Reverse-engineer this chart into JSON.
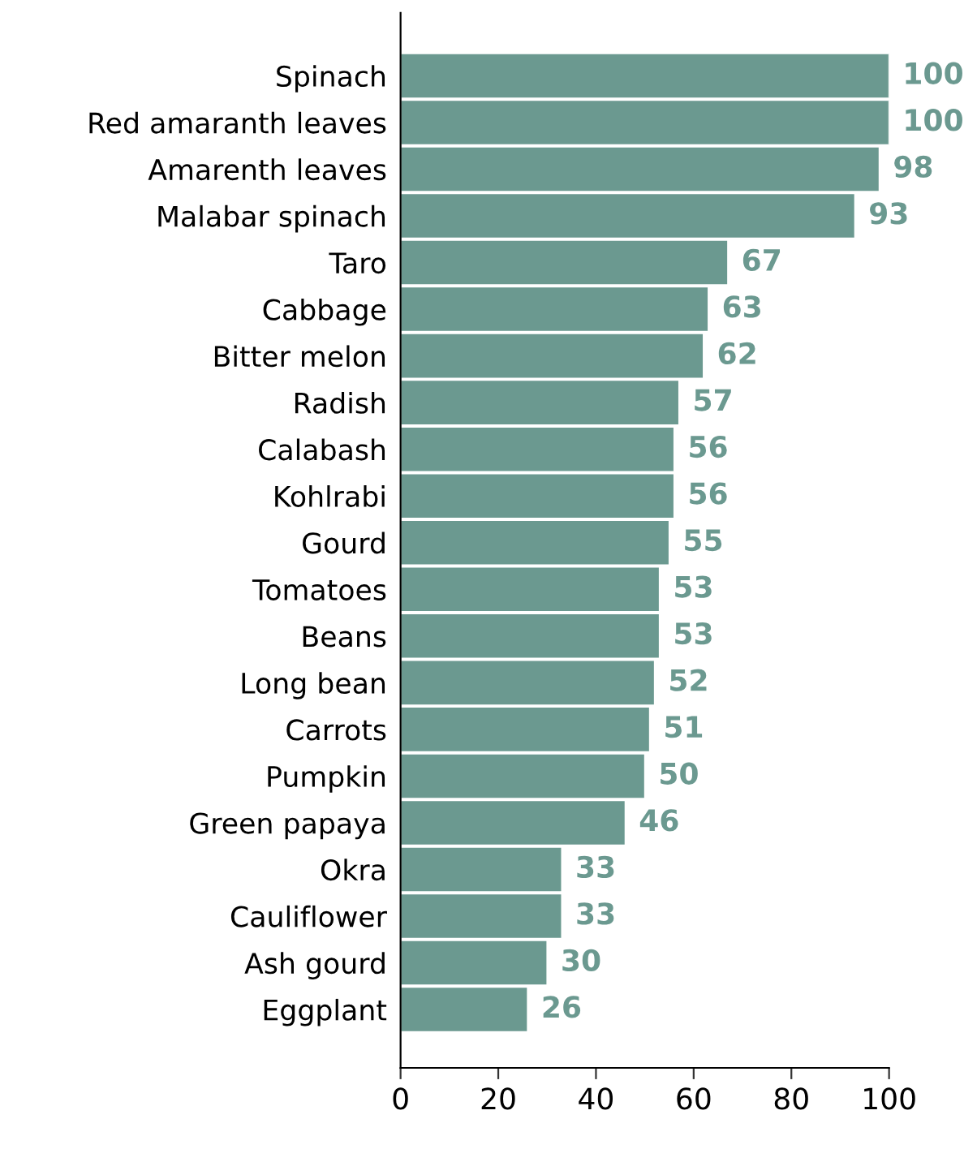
{
  "chart_data": {
    "type": "bar",
    "orientation": "horizontal",
    "categories": [
      "Spinach",
      "Red amaranth leaves",
      "Amarenth leaves",
      "Malabar spinach",
      "Taro",
      "Cabbage",
      "Bitter melon",
      "Radish",
      "Calabash",
      "Kohlrabi",
      "Gourd",
      "Tomatoes",
      "Beans",
      "Long bean",
      "Carrots",
      "Pumpkin",
      "Green papaya",
      "Okra",
      "Cauliflower",
      "Ash gourd",
      "Eggplant"
    ],
    "values": [
      100,
      100,
      98,
      93,
      67,
      63,
      62,
      57,
      56,
      56,
      55,
      53,
      53,
      52,
      51,
      50,
      46,
      33,
      33,
      30,
      26
    ],
    "color": "#6b9990",
    "data_labels": true,
    "xlim": [
      0,
      100
    ],
    "xticks": [
      0,
      20,
      40,
      60,
      80,
      100
    ],
    "grid": false,
    "legend": false
  }
}
